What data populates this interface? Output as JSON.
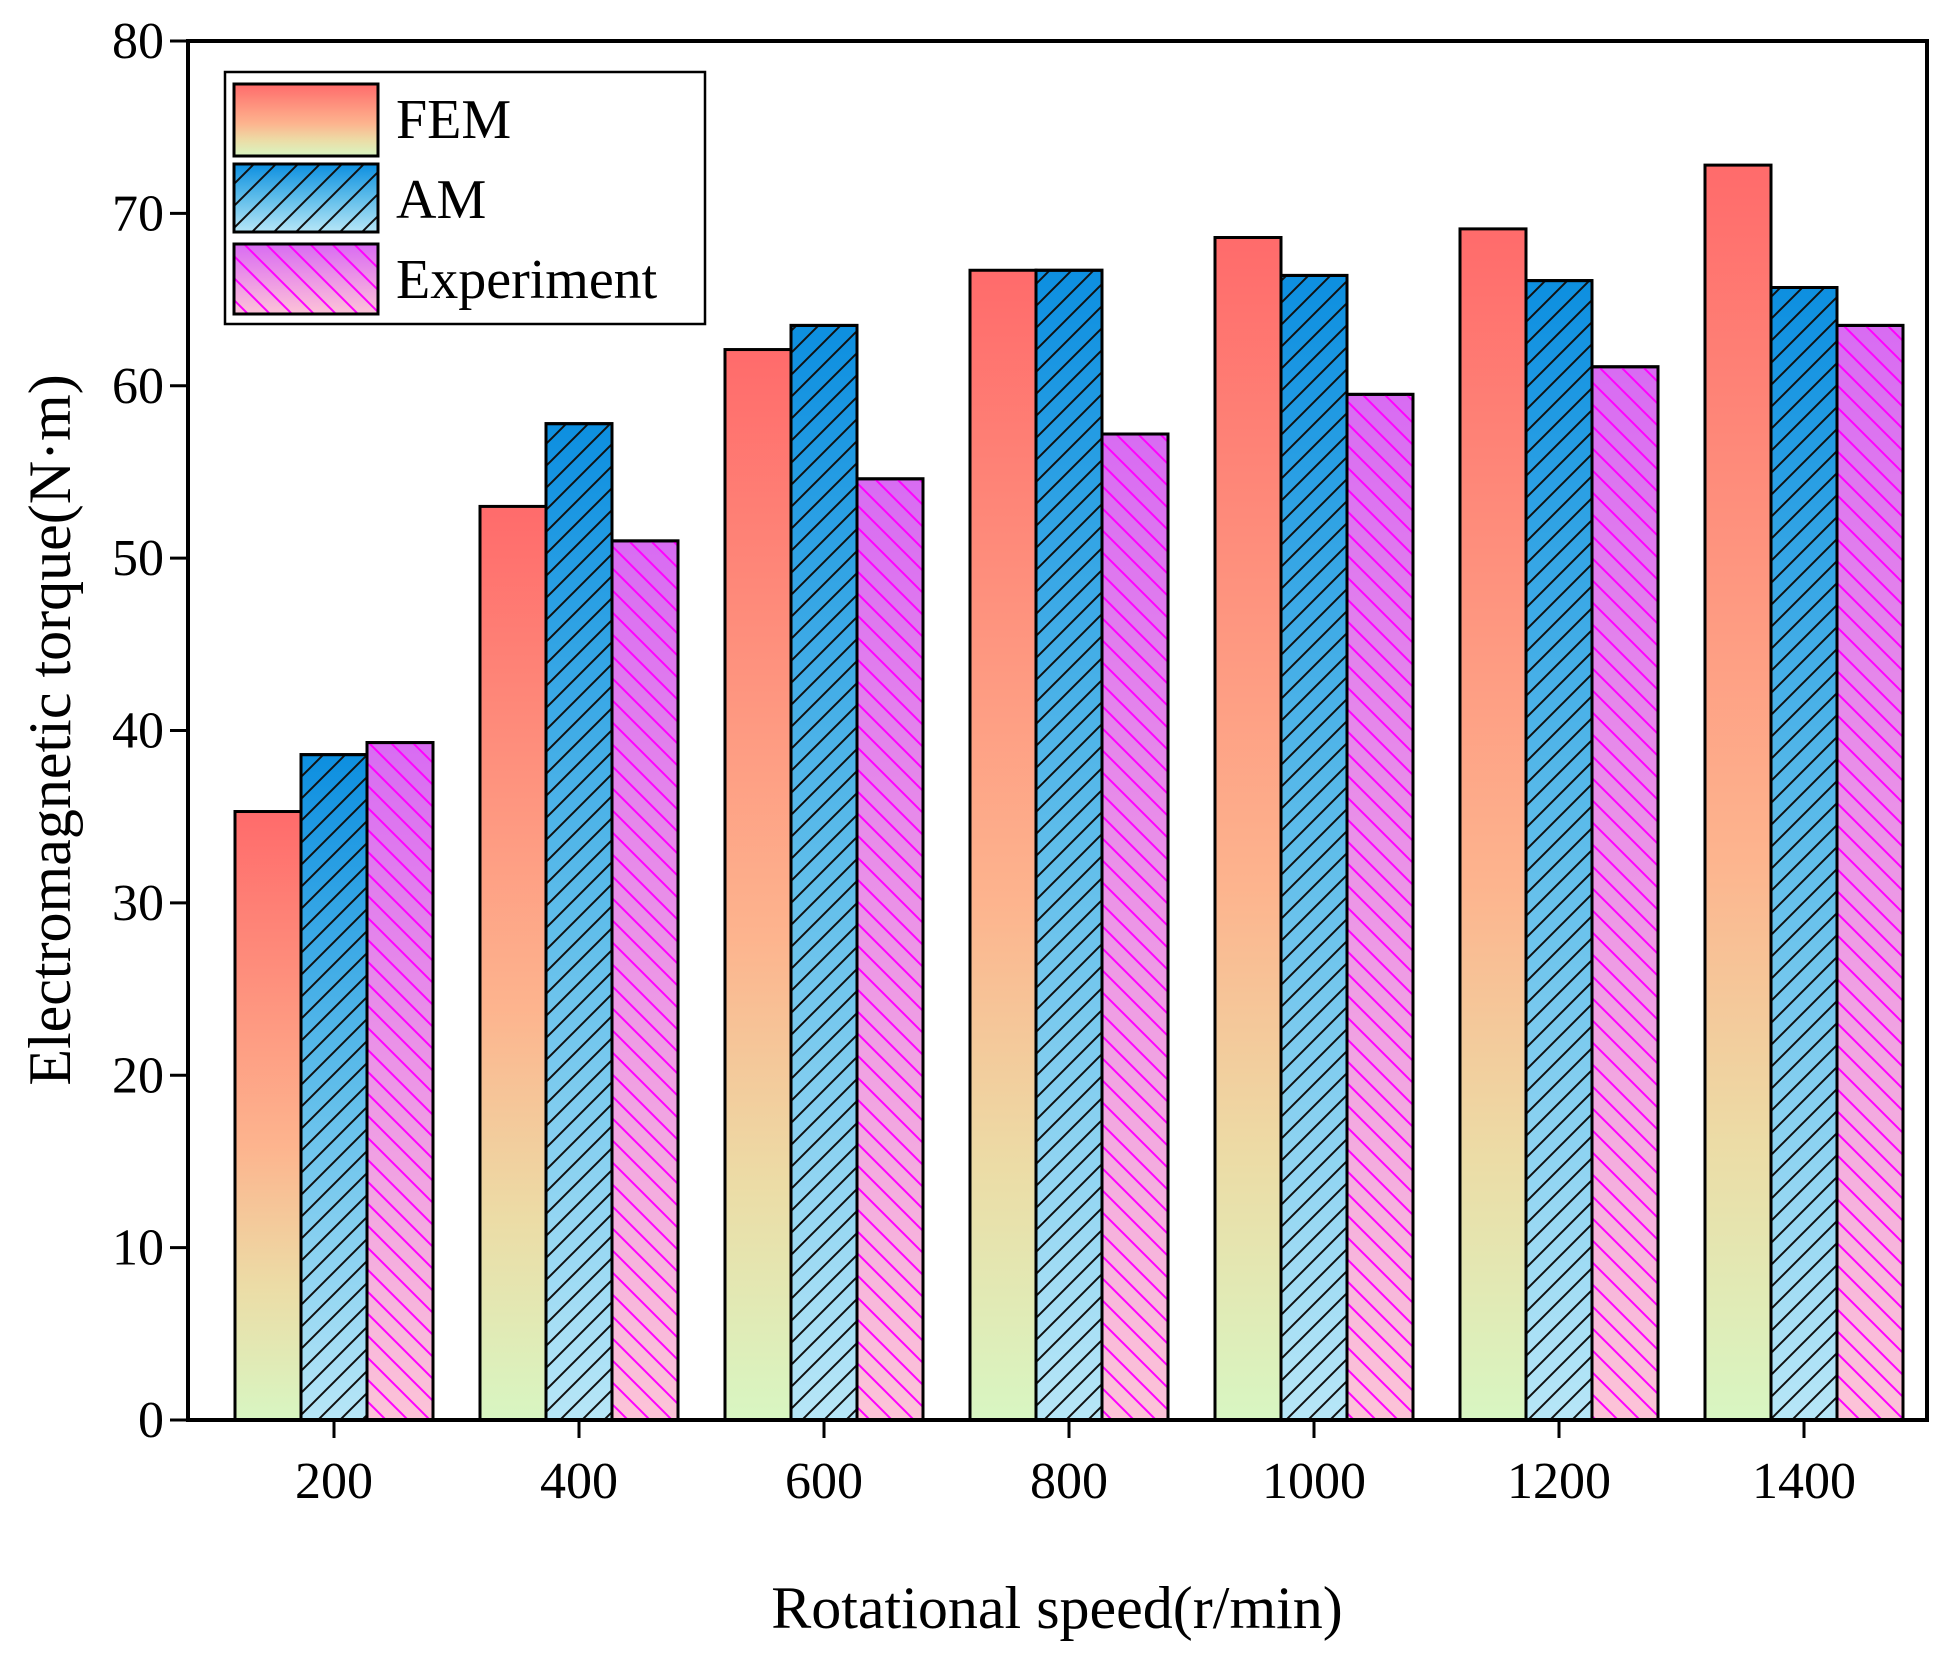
{
  "chart_data": {
    "type": "bar",
    "title": "",
    "xlabel": "Rotational speed(r/min)",
    "ylabel": "Electromagnetic torque(N·m)",
    "categories": [
      "200",
      "400",
      "600",
      "800",
      "1000",
      "1200",
      "1400"
    ],
    "ylim": [
      0,
      80
    ],
    "yticks": [
      "0",
      "10",
      "20",
      "30",
      "40",
      "50",
      "60",
      "70",
      "80"
    ],
    "legend_position": "top-left",
    "series": [
      {
        "name": "FEM",
        "values": [
          35.3,
          53.0,
          62.1,
          66.7,
          68.6,
          69.1,
          72.8
        ],
        "pattern": "gradient-red-to-green"
      },
      {
        "name": "AM",
        "values": [
          38.6,
          57.8,
          63.5,
          66.7,
          66.4,
          66.1,
          65.7
        ],
        "pattern": "gradient-blue-hatch-forward"
      },
      {
        "name": "Experiment",
        "values": [
          39.3,
          51.0,
          54.6,
          57.2,
          59.5,
          61.1,
          63.5
        ],
        "pattern": "gradient-magenta-hatch-back"
      }
    ]
  }
}
